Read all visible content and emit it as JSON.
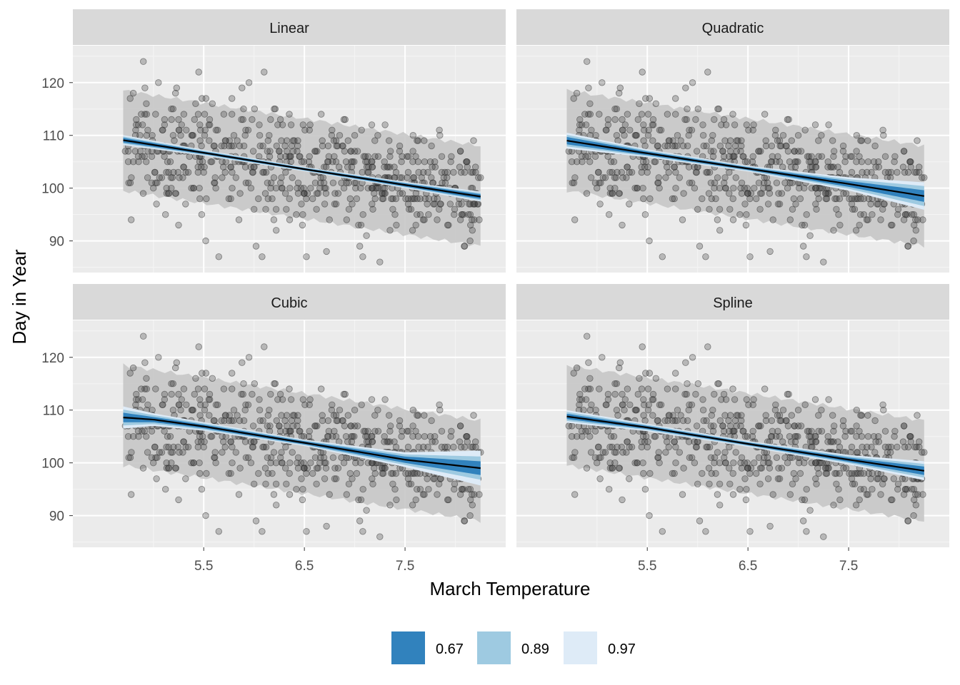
{
  "chart_data": {
    "type": "scatter",
    "xlabel": "March Temperature",
    "ylabel": "Day in Year",
    "xlim": [
      4.2,
      8.5
    ],
    "ylim": [
      84,
      127
    ],
    "x_ticks": [
      5.5,
      6.5,
      7.5
    ],
    "x_tick_labels": [
      "5.5",
      "6.5",
      "7.5"
    ],
    "y_ticks": [
      90,
      100,
      110,
      120
    ],
    "y_tick_labels": [
      "90",
      "100",
      "110",
      "120"
    ],
    "grid": true,
    "legend": {
      "position": "bottom",
      "entries": [
        {
          "label": "0.67",
          "color": "#3182bd"
        },
        {
          "label": "0.89",
          "color": "#9ecae1"
        },
        {
          "label": "0.97",
          "color": "#deebf7"
        }
      ]
    },
    "colors": {
      "panel_bg": "#ebebeb",
      "strip_bg": "#d9d9d9",
      "prediction_band": "#c6c6c6",
      "fit_line": "#000000",
      "points": "#333333"
    },
    "prediction_band": {
      "x": [
        4.7,
        8.25
      ],
      "lower": [
        99.5,
        89.0
      ],
      "upper": [
        118.5,
        108.0
      ]
    },
    "panels": [
      {
        "title": "Linear",
        "fit": {
          "x": [
            4.7,
            5.5,
            6.5,
            7.5,
            8.25
          ],
          "y": [
            109.1,
            106.7,
            103.6,
            100.6,
            98.4
          ]
        },
        "band_half_widths": {
          "0.67": [
            0.45,
            0.25,
            0.2,
            0.3,
            0.45
          ],
          "0.89": [
            0.7,
            0.4,
            0.3,
            0.45,
            0.7
          ],
          "0.97": [
            0.95,
            0.55,
            0.4,
            0.6,
            0.95
          ]
        }
      },
      {
        "title": "Quadratic",
        "fit": {
          "x": [
            4.7,
            5.5,
            6.5,
            7.5,
            8.25
          ],
          "y": [
            109.0,
            106.6,
            103.7,
            100.8,
            98.5
          ]
        },
        "band_half_widths": {
          "0.67": [
            0.7,
            0.35,
            0.25,
            0.55,
            1.1
          ],
          "0.89": [
            1.1,
            0.55,
            0.4,
            0.9,
            1.9
          ],
          "0.97": [
            1.5,
            0.75,
            0.55,
            1.25,
            2.6
          ]
        }
      },
      {
        "title": "Cubic",
        "fit": {
          "x": [
            4.7,
            5.0,
            5.5,
            6.5,
            7.5,
            8.25
          ],
          "y": [
            108.6,
            108.2,
            106.9,
            103.8,
            100.6,
            99.0
          ]
        },
        "band_half_widths": {
          "0.67": [
            0.9,
            0.5,
            0.35,
            0.3,
            0.6,
            1.3
          ],
          "0.89": [
            1.5,
            0.85,
            0.6,
            0.45,
            1.0,
            2.2
          ],
          "0.97": [
            2.1,
            1.2,
            0.8,
            0.6,
            1.4,
            3.3
          ]
        }
      },
      {
        "title": "Spline",
        "fit": {
          "x": [
            4.7,
            5.5,
            6.5,
            7.5,
            8.25
          ],
          "y": [
            108.8,
            106.7,
            103.6,
            100.6,
            98.5
          ]
        },
        "band_half_widths": {
          "0.67": [
            0.5,
            0.3,
            0.25,
            0.4,
            0.8
          ],
          "0.89": [
            0.85,
            0.5,
            0.4,
            0.65,
            1.3
          ],
          "0.97": [
            1.2,
            0.7,
            0.55,
            0.9,
            1.8
          ]
        }
      }
    ],
    "points": [
      [
        4.72,
        107
      ],
      [
        4.78,
        94
      ],
      [
        4.85,
        112
      ],
      [
        4.9,
        124
      ],
      [
        4.93,
        116
      ],
      [
        5.0,
        100
      ],
      [
        5.05,
        120
      ],
      [
        5.1,
        107
      ],
      [
        5.12,
        95
      ],
      [
        5.18,
        113
      ],
      [
        5.22,
        118
      ],
      [
        5.25,
        93
      ],
      [
        5.3,
        104
      ],
      [
        5.32,
        97
      ],
      [
        5.38,
        110
      ],
      [
        5.4,
        100
      ],
      [
        5.42,
        116
      ],
      [
        5.45,
        122
      ],
      [
        5.48,
        95
      ],
      [
        5.5,
        103
      ],
      [
        5.52,
        90
      ],
      [
        5.55,
        112
      ],
      [
        5.6,
        108
      ],
      [
        5.62,
        100
      ],
      [
        5.65,
        87
      ],
      [
        5.7,
        114
      ],
      [
        5.72,
        105
      ],
      [
        5.75,
        98
      ],
      [
        5.78,
        117
      ],
      [
        5.8,
        110
      ],
      [
        5.82,
        102
      ],
      [
        5.85,
        94
      ],
      [
        5.88,
        119
      ],
      [
        5.9,
        108
      ],
      [
        5.92,
        101
      ],
      [
        5.95,
        120
      ],
      [
        5.98,
        113
      ],
      [
        6.0,
        96
      ],
      [
        6.02,
        89
      ],
      [
        6.05,
        106
      ],
      [
        6.08,
        87
      ],
      [
        6.1,
        122
      ],
      [
        6.12,
        103
      ],
      [
        6.15,
        110
      ],
      [
        6.18,
        98
      ],
      [
        6.2,
        115
      ],
      [
        6.22,
        92
      ],
      [
        6.25,
        107
      ],
      [
        6.28,
        100
      ],
      [
        6.3,
        104
      ],
      [
        6.32,
        96
      ],
      [
        6.35,
        114
      ],
      [
        6.38,
        102
      ],
      [
        6.4,
        109
      ],
      [
        6.42,
        95
      ],
      [
        6.45,
        106
      ],
      [
        6.5,
        99
      ],
      [
        6.52,
        87
      ],
      [
        6.55,
        111
      ],
      [
        6.6,
        103
      ],
      [
        6.62,
        96
      ],
      [
        6.68,
        108
      ],
      [
        6.7,
        100
      ],
      [
        6.72,
        88
      ],
      [
        6.78,
        105
      ],
      [
        6.8,
        97
      ],
      [
        6.85,
        110
      ],
      [
        6.9,
        102
      ],
      [
        6.92,
        94
      ],
      [
        7.0,
        107
      ],
      [
        7.02,
        98
      ],
      [
        7.05,
        89
      ],
      [
        7.08,
        87
      ],
      [
        7.12,
        104
      ],
      [
        7.18,
        96
      ],
      [
        7.2,
        109
      ],
      [
        7.25,
        86
      ],
      [
        7.3,
        100
      ],
      [
        7.35,
        106
      ],
      [
        7.4,
        95
      ],
      [
        7.45,
        99
      ],
      [
        7.52,
        102
      ],
      [
        7.58,
        110
      ],
      [
        7.65,
        98
      ],
      [
        7.72,
        97
      ],
      [
        7.8,
        104
      ],
      [
        7.9,
        101
      ],
      [
        8.0,
        100
      ],
      [
        8.05,
        107
      ],
      [
        8.15,
        93
      ],
      [
        8.2,
        104
      ],
      [
        8.25,
        102
      ]
    ]
  }
}
